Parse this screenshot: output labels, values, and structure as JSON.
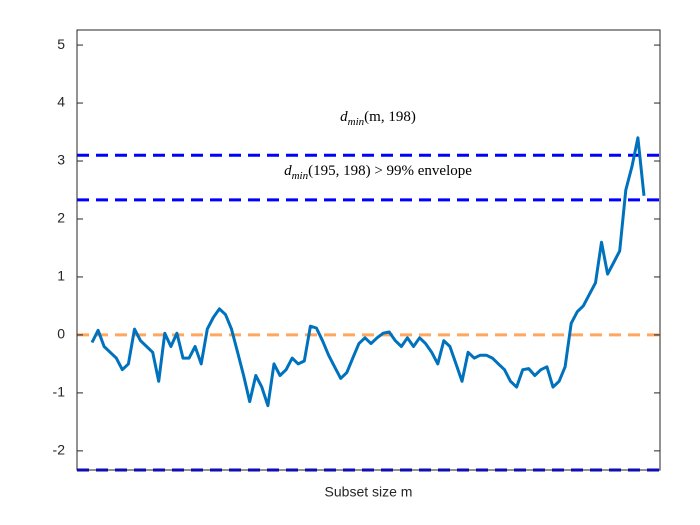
{
  "chart_data": {
    "type": "line",
    "x_label": "Subset size m",
    "ylim": [
      -2.33,
      5.26
    ],
    "yticks": [
      -2,
      -1,
      0,
      1,
      2,
      3,
      4,
      5
    ],
    "series": [
      {
        "name": "d_min(m,198)",
        "color": "#0072bd",
        "values": [
          -0.13,
          0.08,
          -0.2,
          -0.3,
          -0.4,
          -0.6,
          -0.5,
          0.1,
          -0.1,
          -0.2,
          -0.3,
          -0.8,
          0.03,
          -0.2,
          0.03,
          -0.4,
          -0.4,
          -0.2,
          -0.5,
          0.1,
          0.3,
          0.45,
          0.35,
          0.1,
          -0.3,
          -0.7,
          -1.15,
          -0.7,
          -0.9,
          -1.22,
          -0.5,
          -0.7,
          -0.6,
          -0.4,
          -0.5,
          -0.45,
          0.15,
          0.12,
          -0.1,
          -0.35,
          -0.55,
          -0.75,
          -0.65,
          -0.4,
          -0.15,
          -0.05,
          -0.15,
          -0.05,
          0.03,
          0.05,
          -0.1,
          -0.2,
          -0.05,
          -0.2,
          -0.05,
          -0.15,
          -0.3,
          -0.5,
          -0.1,
          -0.2,
          -0.5,
          -0.8,
          -0.3,
          -0.4,
          -0.35,
          -0.35,
          -0.4,
          -0.5,
          -0.6,
          -0.8,
          -0.9,
          -0.6,
          -0.58,
          -0.7,
          -0.6,
          -0.55,
          -0.9,
          -0.8,
          -0.55,
          0.2,
          0.4,
          0.5,
          0.7,
          0.9,
          1.6,
          1.05,
          1.25,
          1.45,
          2.5,
          2.9,
          3.4,
          2.4
        ]
      }
    ],
    "reference_lines": [
      {
        "value": 3.1,
        "color": "#0000ff"
      },
      {
        "value": 2.33,
        "color": "#0000ff"
      },
      {
        "value": -2.33,
        "color": "#0000ff"
      },
      {
        "value": 0,
        "color": "#ffa65f"
      }
    ],
    "annotations": [
      {
        "base": "d",
        "sub": "min",
        "rest": "(m, 198)",
        "y": 3.74
      },
      {
        "base": "d",
        "sub": "min",
        "rest": "(195, 198) > 99% envelope",
        "y": 2.81
      }
    ]
  }
}
